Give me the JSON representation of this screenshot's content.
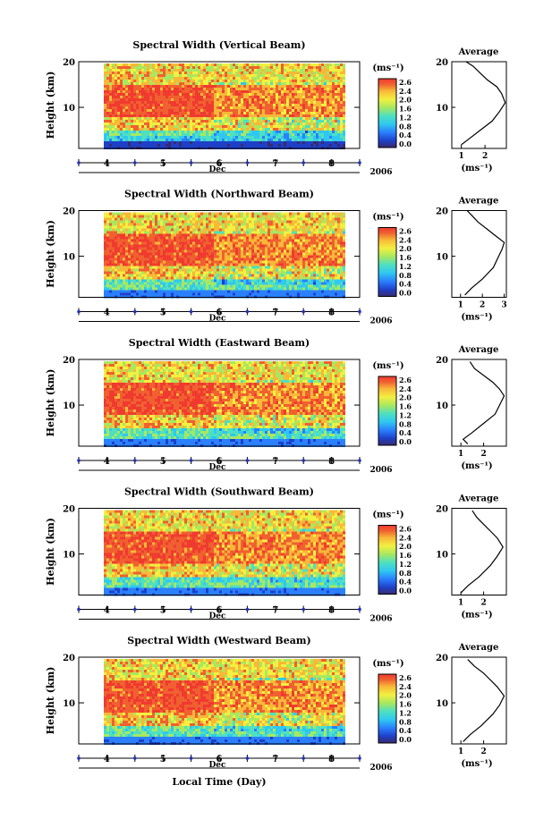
{
  "chart_data": [
    {
      "type": "heatmap",
      "title": "Spectral Width (Vertical Beam)",
      "ylabel": "Height (km)",
      "xlabel": "Dec",
      "year": "2006",
      "x_ticks": [
        "4",
        "5",
        "6",
        "7",
        "8"
      ],
      "y_ticks": [
        "20",
        "10"
      ],
      "ylim": [
        1,
        20
      ],
      "xlim": [
        3.5,
        8.5
      ],
      "colorbar": {
        "unit": "(ms⁻¹)",
        "ticks": [
          "2.6",
          "2.4",
          "2.0",
          "1.6",
          "1.2",
          "0.8",
          "0.4",
          "0.0"
        ]
      },
      "average": {
        "title": "Average",
        "xlabel": "(ms⁻¹)",
        "x_ticks": [
          "1",
          "2"
        ],
        "xlim": [
          0.6,
          2.9
        ],
        "y_ticks": [
          "20",
          "10"
        ],
        "profile": [
          [
            1.0,
            1.8
          ],
          [
            1.3,
            3.0
          ],
          [
            1.8,
            5.0
          ],
          [
            2.3,
            7.0
          ],
          [
            2.6,
            9.0
          ],
          [
            2.85,
            11.0
          ],
          [
            2.7,
            13.0
          ],
          [
            2.5,
            14.5
          ],
          [
            2.1,
            16.0
          ],
          [
            1.8,
            17.5
          ],
          [
            1.5,
            19.0
          ],
          [
            1.2,
            20.0
          ]
        ]
      }
    },
    {
      "type": "heatmap",
      "title": "Spectral Width (Northward Beam)",
      "ylabel": "Height (km)",
      "xlabel": "Dec",
      "year": "2006",
      "x_ticks": [
        "4",
        "5",
        "6",
        "7",
        "8"
      ],
      "y_ticks": [
        "20",
        "10"
      ],
      "ylim": [
        1,
        20
      ],
      "xlim": [
        3.5,
        8.5
      ],
      "colorbar": {
        "unit": "(ms⁻¹)",
        "ticks": [
          "2.6",
          "2.4",
          "2.0",
          "1.6",
          "1.2",
          "0.8",
          "0.4",
          "0.0"
        ]
      },
      "average": {
        "title": "Average",
        "xlabel": "(ms⁻¹)",
        "x_ticks": [
          "1",
          "2",
          "3"
        ],
        "xlim": [
          0.6,
          3.1
        ],
        "y_ticks": [
          "20",
          "10"
        ],
        "profile": [
          [
            1.2,
            1.5
          ],
          [
            1.5,
            3.0
          ],
          [
            2.0,
            5.0
          ],
          [
            2.5,
            7.5
          ],
          [
            2.7,
            9.5
          ],
          [
            2.9,
            11.5
          ],
          [
            3.0,
            13.0
          ],
          [
            2.6,
            14.5
          ],
          [
            2.2,
            16.0
          ],
          [
            1.8,
            17.5
          ],
          [
            1.5,
            19.0
          ],
          [
            1.3,
            20.0
          ]
        ]
      }
    },
    {
      "type": "heatmap",
      "title": "Spectral Width (Eastward Beam)",
      "ylabel": "Height (km)",
      "xlabel": "Dec",
      "year": "2006",
      "x_ticks": [
        "4",
        "5",
        "6",
        "7",
        "8"
      ],
      "y_ticks": [
        "20",
        "10"
      ],
      "ylim": [
        1,
        20
      ],
      "xlim": [
        3.5,
        8.5
      ],
      "colorbar": {
        "unit": "(ms⁻¹)",
        "ticks": [
          "2.6",
          "2.4",
          "2.0",
          "1.6",
          "1.2",
          "0.8",
          "0.4",
          "0.0"
        ]
      },
      "average": {
        "title": "Average",
        "xlabel": "(ms⁻¹)",
        "x_ticks": [
          "1",
          "2"
        ],
        "xlim": [
          0.6,
          3.0
        ],
        "y_ticks": [
          "20",
          "10"
        ],
        "profile": [
          [
            1.3,
            1.5
          ],
          [
            1.1,
            2.5
          ],
          [
            1.5,
            4.0
          ],
          [
            2.0,
            6.0
          ],
          [
            2.5,
            8.0
          ],
          [
            2.7,
            10.0
          ],
          [
            2.9,
            12.0
          ],
          [
            2.7,
            13.5
          ],
          [
            2.4,
            15.0
          ],
          [
            2.0,
            16.5
          ],
          [
            1.6,
            18.0
          ],
          [
            1.4,
            19.5
          ]
        ]
      }
    },
    {
      "type": "heatmap",
      "title": "Spectral Width (Southward Beam)",
      "ylabel": "Height (km)",
      "xlabel": "Dec",
      "year": "2006",
      "x_ticks": [
        "4",
        "5",
        "6",
        "7",
        "8"
      ],
      "y_ticks": [
        "20",
        "10"
      ],
      "ylim": [
        1,
        20
      ],
      "xlim": [
        3.5,
        8.5
      ],
      "colorbar": {
        "unit": "(ms⁻¹)",
        "ticks": [
          "2.6",
          "2.4",
          "2.0",
          "1.6",
          "1.2",
          "0.8",
          "0.4",
          "0.0"
        ]
      },
      "average": {
        "title": "Average",
        "xlabel": "(ms⁻¹)",
        "x_ticks": [
          "1",
          "2"
        ],
        "xlim": [
          0.6,
          3.0
        ],
        "y_ticks": [
          "20",
          "10"
        ],
        "profile": [
          [
            1.0,
            1.5
          ],
          [
            1.3,
            3.0
          ],
          [
            1.8,
            5.0
          ],
          [
            2.3,
            7.5
          ],
          [
            2.6,
            9.5
          ],
          [
            2.85,
            11.5
          ],
          [
            2.6,
            13.5
          ],
          [
            2.3,
            15.0
          ],
          [
            2.0,
            16.5
          ],
          [
            1.7,
            18.0
          ],
          [
            1.5,
            19.5
          ]
        ]
      }
    },
    {
      "type": "heatmap",
      "title": "Spectral Width (Westward Beam)",
      "ylabel": "Height (km)",
      "xlabel": "Dec",
      "year": "2006",
      "x_ticks": [
        "4",
        "5",
        "6",
        "7",
        "8"
      ],
      "y_ticks": [
        "20",
        "10"
      ],
      "ylim": [
        1,
        20
      ],
      "xlim": [
        3.5,
        8.5
      ],
      "colorbar": {
        "unit": "(ms⁻¹)",
        "ticks": [
          "2.6",
          "2.4",
          "2.0",
          "1.6",
          "1.2",
          "0.8",
          "0.4",
          "0.0"
        ]
      },
      "average": {
        "title": "Average",
        "xlabel": "(ms⁻¹)",
        "x_ticks": [
          "1",
          "2"
        ],
        "xlim": [
          0.6,
          3.0
        ],
        "y_ticks": [
          "20",
          "10"
        ],
        "profile": [
          [
            1.1,
            1.5
          ],
          [
            1.4,
            3.0
          ],
          [
            1.9,
            5.0
          ],
          [
            2.4,
            7.5
          ],
          [
            2.7,
            9.5
          ],
          [
            2.9,
            11.5
          ],
          [
            2.6,
            13.5
          ],
          [
            2.3,
            15.0
          ],
          [
            2.0,
            16.5
          ],
          [
            1.6,
            18.0
          ],
          [
            1.3,
            19.5
          ]
        ]
      }
    }
  ],
  "figure": {
    "bottom_label": "Local Time (Day)"
  },
  "colors": {
    "scale": [
      "#3a2a6e",
      "#1e40c8",
      "#2a80ff",
      "#2fc8f0",
      "#4ee0c0",
      "#a8e860",
      "#f2f040",
      "#f8b838",
      "#f06030",
      "#f03a30"
    ]
  }
}
